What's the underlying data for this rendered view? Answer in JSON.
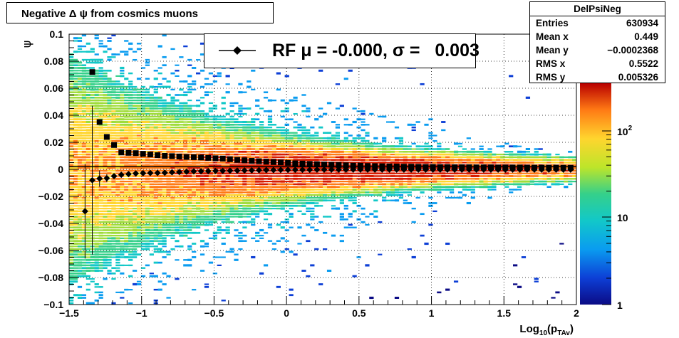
{
  "title": "Negative Δ ψ from cosmics muons",
  "stats": {
    "name": "DelPsiNeg",
    "rows": [
      {
        "key": "Entries",
        "value": "630934"
      },
      {
        "key": "Mean x",
        "value": "0.449"
      },
      {
        "key": "Mean y",
        "value": "−0.0002368"
      },
      {
        "key": "RMS x",
        "value": "0.5522"
      },
      {
        "key": "RMS y",
        "value": "0.005326"
      }
    ]
  },
  "legend": {
    "entry": "RF μ = -0.000, σ =   0.003",
    "marker": "diamond"
  },
  "chart_data": {
    "type": "heatmap",
    "xlabel": "Log10(pTAv)",
    "ylabel": "ψ",
    "xlim": [
      -1.5,
      2
    ],
    "ylim": [
      -0.1,
      0.1
    ],
    "xticks": [
      "−1.5",
      "−1",
      "−0.5",
      "0",
      "0.5",
      "1",
      "1.5",
      "2"
    ],
    "yticks": [
      "−0.1",
      "−0.08",
      "−0.06",
      "−0.04",
      "−0.02",
      "0",
      "0.02",
      "0.04",
      "0.06",
      "0.08",
      "0.1"
    ],
    "grid": true,
    "z_scale": "log",
    "z_ticks": [
      "1",
      "10",
      "10^2"
    ],
    "series": [
      {
        "name": "RF",
        "marker": "diamond",
        "x": [
          -1.39,
          -1.34,
          -1.29,
          -1.24,
          -1.19,
          -1.14,
          -1.09,
          -1.04,
          -0.99,
          -0.94,
          -0.89,
          -0.84,
          -0.79,
          -0.74,
          -0.69,
          -0.64,
          -0.59,
          -0.54,
          -0.49,
          -0.44,
          -0.39,
          -0.34,
          -0.29,
          -0.24,
          -0.19,
          -0.14,
          -0.09,
          -0.04,
          0.01,
          0.06,
          0.11,
          0.16,
          0.21,
          0.26,
          0.31,
          0.36,
          0.41,
          0.46,
          0.51,
          0.56,
          0.61,
          0.66,
          0.71,
          0.76,
          0.81,
          0.86,
          0.91,
          0.96,
          1.01,
          1.06,
          1.11,
          1.16,
          1.21,
          1.26,
          1.31,
          1.36,
          1.41,
          1.46,
          1.51,
          1.56,
          1.61,
          1.66,
          1.71,
          1.76,
          1.81,
          1.86,
          1.91,
          1.96
        ],
        "y": [
          -0.031,
          -0.008,
          -0.0068,
          -0.0065,
          -0.005,
          -0.004,
          -0.0035,
          -0.003,
          -0.0028,
          -0.0027,
          -0.0026,
          -0.0025,
          -0.0022,
          -0.002,
          -0.0017,
          -0.0015,
          -0.0014,
          -0.0013,
          -0.0012,
          -0.0011,
          -0.001,
          -0.0009,
          -0.0008,
          -0.0007,
          -0.0006,
          -0.0005,
          -0.0005,
          -0.0004,
          -0.0004,
          -0.0003,
          -0.0003,
          -0.0003,
          -0.0002,
          -0.0002,
          -0.0002,
          -0.0002,
          -0.0002,
          -0.0002,
          -0.0002,
          -0.0002,
          -0.0002,
          -0.0002,
          -0.0002,
          -0.0002,
          -0.0002,
          -0.0002,
          -0.0002,
          -0.0002,
          -0.0002,
          -0.0002,
          -0.0002,
          -0.0002,
          -0.0002,
          -0.0002,
          -0.0002,
          -0.0002,
          -0.0002,
          -0.0002,
          -0.0002,
          -0.0002,
          -0.0002,
          -0.0002,
          -0.0002,
          -0.0002,
          -0.0002,
          -0.0002,
          -0.0002,
          -0.0002
        ],
        "yerr": [
          0.035,
          0.055,
          0.006,
          0.003,
          0.002,
          0.0015,
          0.001,
          0.001,
          0.0008,
          0.0007,
          0.0006,
          0.0005,
          0.0005,
          0.0004,
          0.0004,
          0.0003,
          0.0003,
          0.0003,
          0.0002,
          0.0002,
          0.0002,
          0.0002,
          0.0002,
          0.0002,
          0.0002,
          0.0001,
          0.0001,
          0.0001,
          0.0001,
          0.0001,
          0.0001,
          0.0001,
          0.0001,
          0.0001,
          0.0001,
          0.0001,
          0.0001,
          0.0001,
          0.0001,
          0.0001,
          0.0001,
          0.0001,
          0.0001,
          0.0001,
          0.0001,
          0.0001,
          0.0001,
          0.0001,
          0.0001,
          0.0001,
          0.0001,
          0.0001,
          0.0001,
          0.0001,
          0.0001,
          0.0001,
          0.0001,
          0.0001,
          0.0001,
          0.0001,
          0.0001,
          0.0001,
          0.0001,
          0.0001,
          0.0001,
          0.0001,
          0.0001,
          0.0001
        ]
      },
      {
        "name": "",
        "marker": "square",
        "x": [
          -1.34,
          -1.29,
          -1.24,
          -1.19,
          -1.14,
          -1.09,
          -1.04,
          -0.99,
          -0.94,
          -0.89,
          -0.84,
          -0.79,
          -0.74,
          -0.69,
          -0.64,
          -0.59,
          -0.54,
          -0.49,
          -0.44,
          -0.39,
          -0.34,
          -0.29,
          -0.24,
          -0.19,
          -0.14,
          -0.09,
          -0.04,
          0.01,
          0.06,
          0.11,
          0.16,
          0.21,
          0.26,
          0.31,
          0.36,
          0.41,
          0.46,
          0.51,
          0.56,
          0.61,
          0.66,
          0.71,
          0.76,
          0.81,
          0.86,
          0.91,
          0.96,
          1.01,
          1.06,
          1.11,
          1.16,
          1.21,
          1.26,
          1.31,
          1.36,
          1.41,
          1.46,
          1.51,
          1.56,
          1.61,
          1.66,
          1.71,
          1.76,
          1.81,
          1.86,
          1.91,
          1.96
        ],
        "y": [
          0.072,
          0.035,
          0.024,
          0.018,
          0.0125,
          0.0122,
          0.012,
          0.0115,
          0.011,
          0.0105,
          0.01,
          0.0098,
          0.0095,
          0.0092,
          0.009,
          0.0088,
          0.0085,
          0.0082,
          0.008,
          0.0075,
          0.007,
          0.0067,
          0.0063,
          0.006,
          0.0057,
          0.0054,
          0.0051,
          0.0048,
          0.0045,
          0.0043,
          0.004,
          0.0038,
          0.0036,
          0.0034,
          0.0032,
          0.003,
          0.0028,
          0.0027,
          0.0025,
          0.0024,
          0.0023,
          0.0022,
          0.0021,
          0.002,
          0.002,
          0.0019,
          0.0018,
          0.0018,
          0.0017,
          0.0017,
          0.0016,
          0.0016,
          0.0016,
          0.0015,
          0.0015,
          0.0015,
          0.0014,
          0.0014,
          0.0014,
          0.0014,
          0.0013,
          0.0013,
          0.0013,
          0.0013,
          0.0013,
          0.0012,
          0.0012
        ]
      }
    ]
  }
}
